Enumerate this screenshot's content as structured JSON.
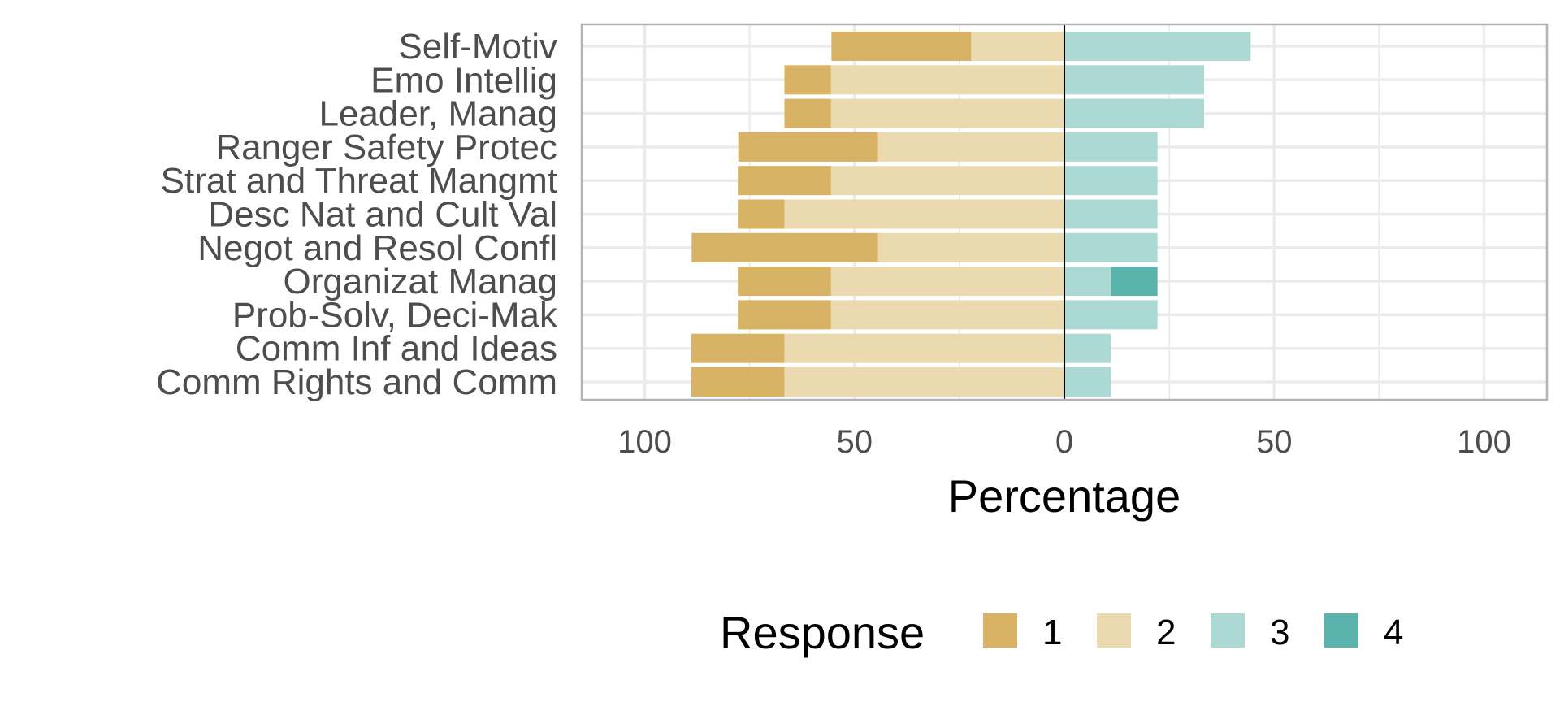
{
  "chart_data": {
    "type": "bar",
    "orientation": "horizontal",
    "stacking": "diverging",
    "xlabel": "Percentage",
    "x_ticks": [
      -100,
      -50,
      0,
      50,
      100
    ],
    "x_tick_labels": [
      "100",
      "50",
      "0",
      "50",
      "100"
    ],
    "xlim": [
      -115,
      115
    ],
    "grid": true,
    "legend": {
      "title": "Response",
      "position": "bottom",
      "entries": [
        "1",
        "2",
        "3",
        "4"
      ]
    },
    "colors": {
      "1": "#d8b365",
      "2": "#ebdab0",
      "3": "#acd9d4",
      "4": "#5ab4ac"
    },
    "categories": [
      "Self-Motiv",
      "Emo Intellig",
      "Leader, Manag",
      "Ranger Safety Protec",
      "Strat and Threat Mangmt",
      "Desc Nat and Cult Val",
      "Negot and Resol Confl",
      "Organizat Manag",
      "Prob-Solv, Deci-Mak",
      "Comm Inf and Ideas",
      "Comm Rights and Comm"
    ],
    "series": [
      {
        "name": "1",
        "side": "negative",
        "values": [
          33.3,
          11.1,
          11.1,
          33.3,
          22.2,
          11.1,
          44.4,
          22.2,
          22.2,
          22.2,
          22.2
        ]
      },
      {
        "name": "2",
        "side": "negative",
        "values": [
          22.2,
          55.6,
          55.6,
          44.4,
          55.6,
          66.7,
          44.4,
          55.6,
          55.6,
          66.7,
          66.7
        ]
      },
      {
        "name": "3",
        "side": "positive",
        "values": [
          44.4,
          33.3,
          33.3,
          22.2,
          22.2,
          22.2,
          22.2,
          11.1,
          22.2,
          11.1,
          11.1
        ]
      },
      {
        "name": "4",
        "side": "positive",
        "values": [
          0,
          0,
          0,
          0,
          0,
          0,
          0,
          11.1,
          0,
          0,
          0
        ]
      }
    ]
  }
}
